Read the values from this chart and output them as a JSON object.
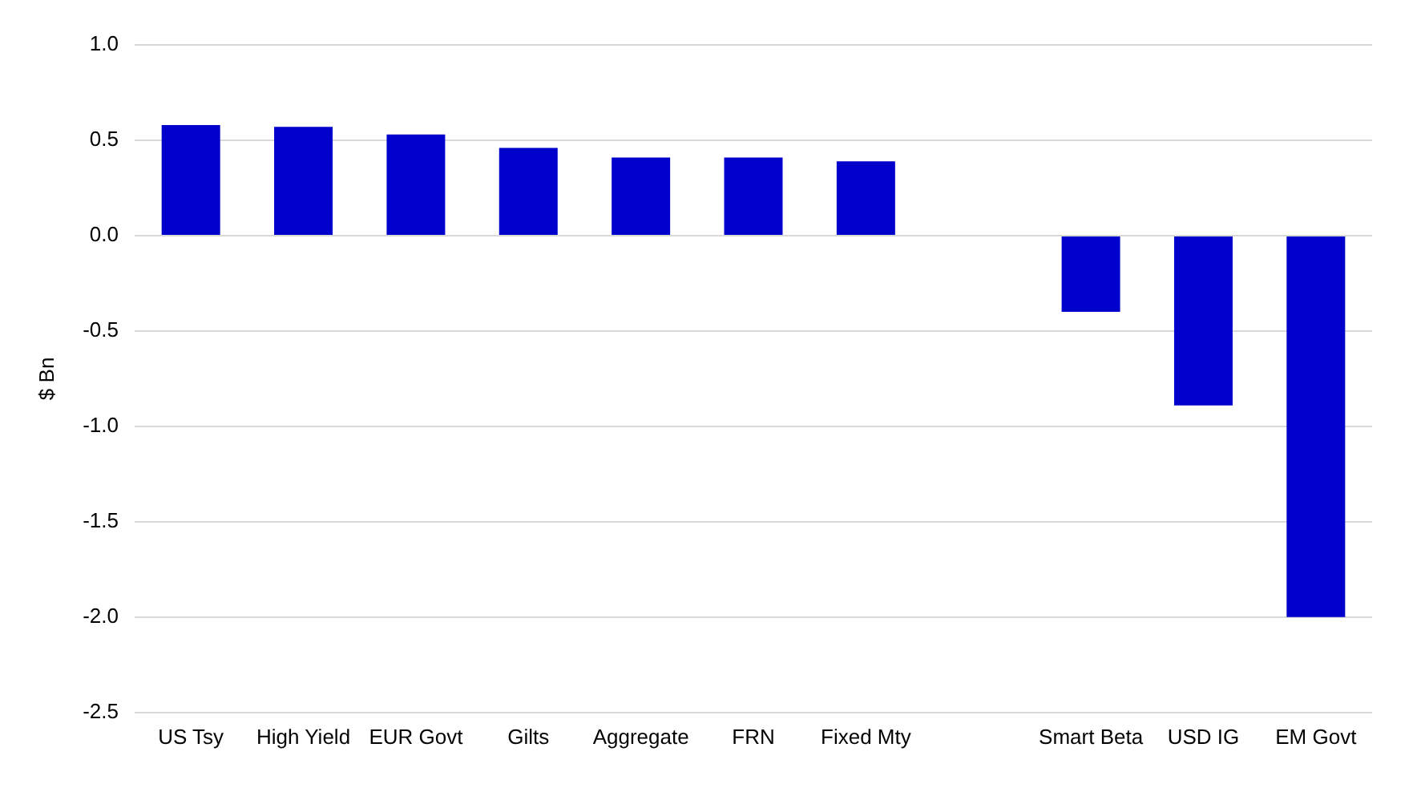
{
  "chart_data": {
    "type": "bar",
    "ylabel": "$ Bn",
    "categories": [
      "US Tsy",
      "High Yield",
      "EUR Govt",
      "Gilts",
      "Aggregate",
      "FRN",
      "Fixed Mty",
      null,
      "Smart Beta",
      "USD IG",
      "EM Govt"
    ],
    "values": [
      0.58,
      0.57,
      0.53,
      0.46,
      0.41,
      0.41,
      0.39,
      null,
      -0.4,
      -0.89,
      -2.0
    ],
    "color": "#0000cc",
    "ylim": [
      -2.5,
      1.0
    ],
    "yticks": [
      {
        "value": -2.5,
        "label": "-2.5"
      },
      {
        "value": -2,
        "label": "-2.0"
      },
      {
        "value": -1.5,
        "label": "-1.5"
      },
      {
        "value": -1,
        "label": "-1.0"
      },
      {
        "value": -0.5,
        "label": "-0.5"
      },
      {
        "value": 0,
        "label": "0.0"
      },
      {
        "value": 0.5,
        "label": "0.5"
      },
      {
        "value": 1,
        "label": "1.0"
      }
    ],
    "grid": "y",
    "legend": false
  }
}
